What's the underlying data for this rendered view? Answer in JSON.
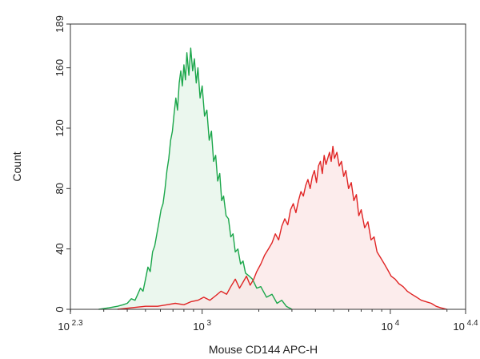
{
  "chart_data": {
    "type": "area",
    "xlabel": "Mouse CD144 APC-H",
    "ylabel": "Count",
    "xscale": "log",
    "xlim": [
      199.5,
      25119
    ],
    "ylim": [
      0,
      189
    ],
    "x_ticks": [
      {
        "value": 199.5,
        "base": "10",
        "exp": "2.3"
      },
      {
        "value": 1000,
        "base": "10",
        "exp": "3"
      },
      {
        "value": 10000,
        "base": "10",
        "exp": "4"
      },
      {
        "value": 25119,
        "base": "10",
        "exp": "4.4"
      }
    ],
    "y_ticks": [
      {
        "value": 0,
        "label": "0"
      },
      {
        "value": 40,
        "label": "40"
      },
      {
        "value": 80,
        "label": "80"
      },
      {
        "value": 120,
        "label": "120"
      },
      {
        "value": 160,
        "label": "160"
      },
      {
        "value": 189,
        "label": "189"
      }
    ],
    "grid": false,
    "legend": "none",
    "series": [
      {
        "color": "#1aa64a",
        "fill": "#e4f4e8",
        "x": [
          282,
          320,
          355,
          380,
          400,
          420,
          440,
          455,
          470,
          485,
          500,
          515,
          530,
          545,
          560,
          575,
          590,
          605,
          620,
          635,
          650,
          665,
          680,
          695,
          710,
          725,
          740,
          755,
          770,
          785,
          800,
          815,
          830,
          850,
          870,
          890,
          910,
          930,
          950,
          975,
          1000,
          1030,
          1060,
          1090,
          1120,
          1150,
          1180,
          1210,
          1240,
          1270,
          1300,
          1340,
          1380,
          1420,
          1460,
          1500,
          1550,
          1600,
          1650,
          1700,
          1780,
          1850,
          1950,
          2050,
          2200,
          2350,
          2500,
          2650,
          2800,
          3000
        ],
        "y": [
          0,
          1,
          2,
          3,
          4,
          7,
          6,
          10,
          14,
          12,
          20,
          28,
          25,
          38,
          42,
          50,
          58,
          66,
          70,
          80,
          92,
          100,
          112,
          118,
          130,
          140,
          132,
          150,
          158,
          148,
          162,
          152,
          170,
          155,
          173,
          158,
          166,
          150,
          160,
          140,
          148,
          128,
          132,
          112,
          118,
          98,
          102,
          85,
          90,
          72,
          75,
          62,
          60,
          48,
          50,
          38,
          40,
          30,
          32,
          24,
          22,
          20,
          14,
          15,
          8,
          10,
          4,
          6,
          2,
          0
        ]
      },
      {
        "color": "#e02424",
        "fill": "#fbe6e6",
        "x": [
          355,
          420,
          500,
          580,
          650,
          720,
          800,
          870,
          950,
          1020,
          1100,
          1180,
          1260,
          1350,
          1420,
          1500,
          1580,
          1650,
          1720,
          1800,
          1880,
          1950,
          2050,
          2150,
          2250,
          2350,
          2450,
          2550,
          2650,
          2750,
          2850,
          2950,
          3050,
          3150,
          3250,
          3350,
          3450,
          3550,
          3650,
          3750,
          3850,
          3950,
          4050,
          4150,
          4250,
          4350,
          4450,
          4550,
          4650,
          4750,
          4850,
          4950,
          5050,
          5200,
          5350,
          5500,
          5650,
          5800,
          6000,
          6200,
          6400,
          6600,
          6800,
          7000,
          7300,
          7600,
          7900,
          8200,
          8500,
          8900,
          9300,
          9700,
          10100,
          10600,
          11100,
          11700,
          12300,
          13000,
          13800,
          14600,
          15500,
          16500,
          17500,
          18500,
          20000
        ],
        "y": [
          0,
          1,
          2,
          2,
          3,
          4,
          3,
          5,
          6,
          8,
          6,
          9,
          12,
          10,
          15,
          20,
          14,
          18,
          22,
          16,
          20,
          25,
          30,
          36,
          40,
          44,
          50,
          46,
          55,
          60,
          56,
          66,
          70,
          64,
          72,
          78,
          75,
          82,
          86,
          80,
          88,
          92,
          84,
          95,
          98,
          90,
          102,
          96,
          100,
          104,
          98,
          108,
          100,
          104,
          95,
          98,
          88,
          92,
          80,
          84,
          72,
          76,
          62,
          66,
          54,
          58,
          46,
          48,
          38,
          34,
          30,
          26,
          22,
          20,
          17,
          15,
          12,
          10,
          8,
          6,
          5,
          4,
          2,
          1,
          0
        ]
      }
    ]
  }
}
